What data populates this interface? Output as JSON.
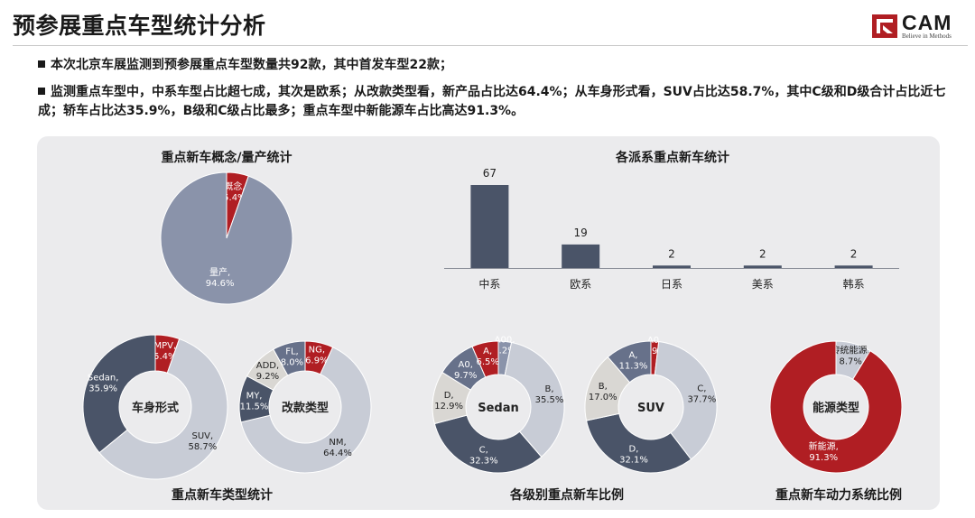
{
  "page": {
    "title": "预参展重点车型统计分析",
    "logo": {
      "text": "CAM",
      "tagline": "Believe in Methods"
    },
    "bullets": [
      "本次北京车展监测到预参展重点车型数量共92款，其中首发车型22款；",
      "监测重点车型中，中系车型占比超七成，其次是欧系；从改款类型看，新产品占比达64.4%；从车身形式看，SUV占比达58.7%，其中C级和D级合计占比近七成；轿车占比达35.9%，B级和C级占比最多；重点车型中新能源车占比高达91.3%。"
    ],
    "section_titles": {
      "concept": "重点新车概念/量产统计",
      "faction": "各派系重点新车统计",
      "type": "重点新车类型统计",
      "level": "各级别重点新车比例",
      "power": "重点新车动力系统比例"
    }
  },
  "colors": {
    "red": "#b01e23",
    "dark": "#4a5468",
    "mid": "#8a93aa",
    "light": "#c8ccd6",
    "beige": "#d9d7d3",
    "slate": "#67718a"
  },
  "chart_data": [
    {
      "id": "concept",
      "type": "pie",
      "title": "重点新车概念/量产统计",
      "slices": [
        {
          "label": "概念,",
          "pct": "5.4%",
          "value": 5.4,
          "color": "#b01e23"
        },
        {
          "label": "量产,",
          "pct": "94.6%",
          "value": 94.6,
          "color": "#8a93aa"
        }
      ]
    },
    {
      "id": "faction",
      "type": "bar",
      "title": "各派系重点新车统计",
      "categories": [
        "中系",
        "欧系",
        "日系",
        "美系",
        "韩系"
      ],
      "values": [
        67,
        19,
        2,
        2,
        2
      ],
      "color": "#4a5468"
    },
    {
      "id": "body",
      "type": "pie",
      "donut": true,
      "center": "车身形式",
      "slices": [
        {
          "label": "MPV,",
          "pct": "5.4%",
          "value": 5.4,
          "color": "#b01e23"
        },
        {
          "label": "SUV,",
          "pct": "58.7%",
          "value": 58.7,
          "color": "#c8ccd6"
        },
        {
          "label": "Sedan,",
          "pct": "35.9%",
          "value": 35.9,
          "color": "#4a5468"
        }
      ]
    },
    {
      "id": "change",
      "type": "pie",
      "donut": true,
      "center": "改款类型",
      "slices": [
        {
          "label": "NG,",
          "pct": "6.9%",
          "value": 6.9,
          "color": "#b01e23"
        },
        {
          "label": "NM,",
          "pct": "64.4%",
          "value": 64.4,
          "color": "#c8ccd6"
        },
        {
          "label": "MY,",
          "pct": "11.5%",
          "value": 11.5,
          "color": "#4a5468"
        },
        {
          "label": "ADD,",
          "pct": "9.2%",
          "value": 9.2,
          "color": "#d9d7d3"
        },
        {
          "label": "FL,",
          "pct": "8.0%",
          "value": 8.0,
          "color": "#67718a"
        }
      ]
    },
    {
      "id": "sedan",
      "type": "pie",
      "donut": true,
      "center": "Sedan",
      "slices": [
        {
          "label": "A00,",
          "pct": "3.2%",
          "value": 3.2,
          "color": "#8a93aa"
        },
        {
          "label": "B,",
          "pct": "35.5%",
          "value": 35.5,
          "color": "#c8ccd6"
        },
        {
          "label": "C,",
          "pct": "32.3%",
          "value": 32.3,
          "color": "#4a5468"
        },
        {
          "label": "D,",
          "pct": "12.9%",
          "value": 12.9,
          "color": "#d9d7d3"
        },
        {
          "label": "A0,",
          "pct": "9.7%",
          "value": 9.7,
          "color": "#67718a"
        },
        {
          "label": "A,",
          "pct": "6.5%",
          "value": 6.5,
          "color": "#b01e23"
        }
      ]
    },
    {
      "id": "suv",
      "type": "pie",
      "donut": true,
      "center": "SUV",
      "slices": [
        {
          "label": "A0,",
          "pct": "1.9%",
          "value": 1.9,
          "color": "#b01e23"
        },
        {
          "label": "C,",
          "pct": "37.7%",
          "value": 37.7,
          "color": "#c8ccd6"
        },
        {
          "label": "D,",
          "pct": "32.1%",
          "value": 32.1,
          "color": "#4a5468"
        },
        {
          "label": "B,",
          "pct": "17.0%",
          "value": 17.0,
          "color": "#d9d7d3"
        },
        {
          "label": "A,",
          "pct": "11.3%",
          "value": 11.3,
          "color": "#67718a"
        }
      ]
    },
    {
      "id": "power",
      "type": "pie",
      "donut": true,
      "center": "能源类型",
      "slices": [
        {
          "label": "传统能源,",
          "pct": "8.7%",
          "value": 8.7,
          "color": "#c8ccd6"
        },
        {
          "label": "新能源,",
          "pct": "91.3%",
          "value": 91.3,
          "color": "#b01e23"
        }
      ]
    }
  ]
}
